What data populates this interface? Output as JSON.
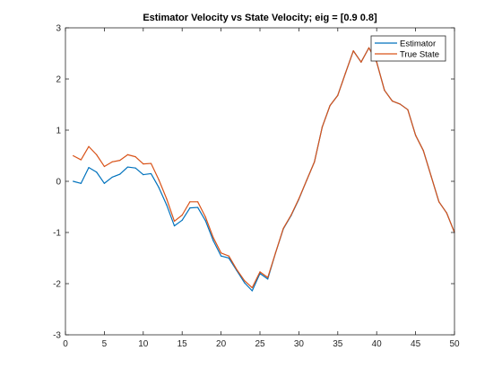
{
  "chart_data": {
    "type": "line",
    "title": "Estimator Velocity vs State Velocity; eig = [0.9 0.8]",
    "xlabel": "",
    "ylabel": "",
    "xlim": [
      0,
      50
    ],
    "ylim": [
      -3,
      3
    ],
    "x_ticks": [
      0,
      5,
      10,
      15,
      20,
      25,
      30,
      35,
      40,
      45,
      50
    ],
    "y_ticks": [
      -3,
      -2,
      -1,
      0,
      1,
      2,
      3
    ],
    "grid": false,
    "legend_position": "top-right",
    "x": [
      1,
      2,
      3,
      4,
      5,
      6,
      7,
      8,
      9,
      10,
      11,
      12,
      13,
      14,
      15,
      16,
      17,
      18,
      19,
      20,
      21,
      22,
      23,
      24,
      25,
      26,
      27,
      28,
      29,
      30,
      31,
      32,
      33,
      34,
      35,
      36,
      37,
      38,
      39,
      40,
      41,
      42,
      43,
      44,
      45,
      46,
      47,
      48,
      49,
      50
    ],
    "series": [
      {
        "name": "Estimator",
        "color": "#0072BD",
        "values": [
          0.0,
          -0.04,
          0.27,
          0.18,
          -0.04,
          0.08,
          0.14,
          0.28,
          0.26,
          0.13,
          0.15,
          -0.12,
          -0.46,
          -0.87,
          -0.76,
          -0.52,
          -0.51,
          -0.77,
          -1.16,
          -1.46,
          -1.5,
          -1.74,
          -1.98,
          -2.14,
          -1.8,
          -1.91,
          -1.4,
          -0.93,
          -0.67,
          -0.35,
          0.02,
          0.38,
          1.06,
          1.48,
          1.68,
          2.12,
          2.55,
          2.33,
          2.61,
          2.33,
          1.78,
          1.57,
          1.51,
          1.4,
          0.9,
          0.6,
          0.1,
          -0.4,
          -0.62,
          -1.0
        ]
      },
      {
        "name": "True State",
        "color": "#D95319",
        "values": [
          0.5,
          0.42,
          0.68,
          0.52,
          0.29,
          0.38,
          0.41,
          0.52,
          0.48,
          0.34,
          0.35,
          0.03,
          -0.34,
          -0.78,
          -0.66,
          -0.4,
          -0.4,
          -0.7,
          -1.1,
          -1.4,
          -1.46,
          -1.72,
          -1.94,
          -2.08,
          -1.77,
          -1.88,
          -1.4,
          -0.92,
          -0.66,
          -0.34,
          0.02,
          0.38,
          1.06,
          1.48,
          1.68,
          2.12,
          2.55,
          2.33,
          2.61,
          2.33,
          1.78,
          1.57,
          1.51,
          1.4,
          0.9,
          0.6,
          0.1,
          -0.4,
          -0.62,
          -1.0
        ]
      }
    ]
  }
}
